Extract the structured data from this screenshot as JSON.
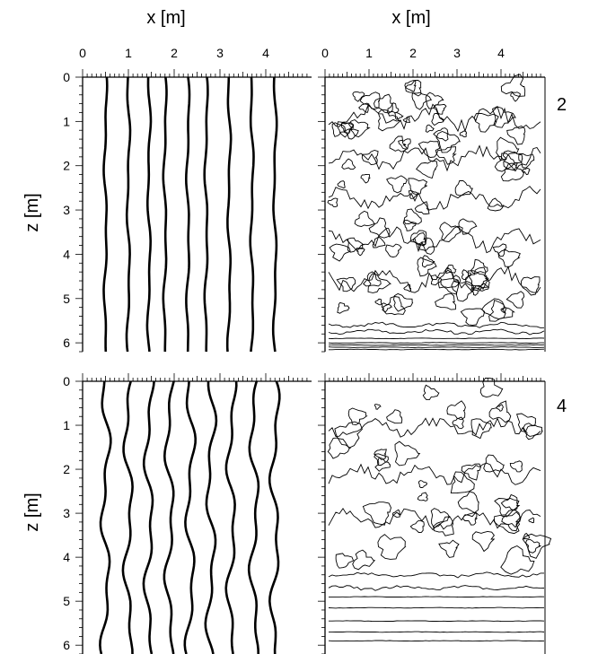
{
  "chart_data": [
    {
      "type": "line",
      "panel": "row-2-left",
      "x_label": "x [m]",
      "y_label": "z [m]",
      "xlim": [
        0,
        5
      ],
      "ylim": [
        0,
        6.2
      ],
      "x_ticks": [
        "0",
        "1",
        "2",
        "3",
        "4"
      ],
      "y_ticks": [
        "0",
        "1",
        "2",
        "3",
        "4",
        "5",
        "6"
      ],
      "series_x": [
        0.5,
        1.0,
        1.45,
        1.8,
        2.3,
        2.7,
        3.2,
        3.7,
        4.2
      ],
      "waviness": 0.04
    },
    {
      "type": "contour",
      "panel": "row-2-right",
      "x_label": "x [m]",
      "x_ticks": [
        "0",
        "1",
        "2",
        "3",
        "4"
      ],
      "xlim": [
        0,
        5
      ],
      "ylim": [
        0,
        6.2
      ],
      "irregular_region_z": [
        0,
        5.5
      ],
      "horizontal_contours_z": [
        5.6,
        5.75,
        5.9,
        6.0,
        6.05,
        6.1,
        6.15
      ]
    },
    {
      "type": "line",
      "panel": "row-4-left",
      "y_label": "z [m]",
      "xlim": [
        0,
        5
      ],
      "ylim": [
        0,
        6.2
      ],
      "y_ticks": [
        "0",
        "1",
        "2",
        "3",
        "4",
        "5",
        "6"
      ],
      "series_x": [
        0.5,
        1.0,
        1.45,
        1.9,
        2.35,
        2.8,
        3.25,
        3.75,
        4.2
      ],
      "waviness": 0.12
    },
    {
      "type": "contour",
      "panel": "row-4-right",
      "xlim": [
        0,
        5
      ],
      "ylim": [
        0,
        6.2
      ],
      "irregular_region_z": [
        0,
        4.2
      ],
      "horizontal_contours_z": [
        4.4,
        4.7,
        4.9,
        5.15,
        5.45,
        5.7,
        5.9
      ]
    }
  ],
  "row_labels": [
    "2",
    "4"
  ],
  "top_axis_titles": [
    "x [m]",
    "x [m]"
  ],
  "left_axis_titles": [
    "z [m]",
    "z [m]"
  ]
}
